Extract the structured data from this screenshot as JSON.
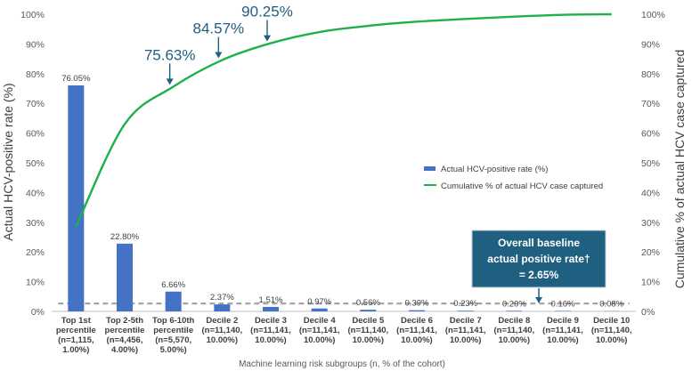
{
  "chart_data": {
    "type": "bar+line",
    "title": "",
    "xlabel": "Machine learning risk subgroups (n, % of the cohort)",
    "ylabel_left": "Actual HCV-positive rate (%)",
    "ylabel_right": "Cumulative % of actual HCV case captured",
    "ylim": [
      0,
      100
    ],
    "yticks": [
      "0%",
      "10%",
      "20%",
      "30%",
      "40%",
      "50%",
      "60%",
      "70%",
      "80%",
      "90%",
      "100%"
    ],
    "categories": [
      {
        "line1": "Top 1st",
        "line2": "percentile",
        "line3": "(n=1,115,",
        "line4": "1.00%)"
      },
      {
        "line1": "Top 2-5th",
        "line2": "percentile",
        "line3": "(n=4,456,",
        "line4": "4.00%)"
      },
      {
        "line1": "Top 6-10th",
        "line2": "percentile",
        "line3": "(n=5,570,",
        "line4": "5.00%)"
      },
      {
        "line1": "Decile 2",
        "line2": "(n=11,140,",
        "line3": "10.00%)",
        "line4": ""
      },
      {
        "line1": "Decile 3",
        "line2": "(n=11,141,",
        "line3": "10.00%)",
        "line4": ""
      },
      {
        "line1": "Decile 4",
        "line2": "(n=11,141,",
        "line3": "10.00%)",
        "line4": ""
      },
      {
        "line1": "Decile 5",
        "line2": "(n=11,140,",
        "line3": "10.00%)",
        "line4": ""
      },
      {
        "line1": "Decile 6",
        "line2": "(n=11,141,",
        "line3": "10.00%)",
        "line4": ""
      },
      {
        "line1": "Decile 7",
        "line2": "(n=11,141,",
        "line3": "10.00%)",
        "line4": ""
      },
      {
        "line1": "Decile 8",
        "line2": "(n=11,140,",
        "line3": "10.00%)",
        "line4": ""
      },
      {
        "line1": "Decile 9",
        "line2": "(n=11,141,",
        "line3": "10.00%)",
        "line4": ""
      },
      {
        "line1": "Decile 10",
        "line2": "(n=11,140,",
        "line3": "10.00%)",
        "line4": ""
      }
    ],
    "series": [
      {
        "name": "Actual HCV-positive rate (%)",
        "type": "bar",
        "color": "#4472c4",
        "values": [
          76.05,
          22.8,
          6.66,
          2.37,
          1.51,
          0.97,
          0.56,
          0.39,
          0.23,
          0.2,
          0.16,
          0.08
        ],
        "labels": [
          "76.05%",
          "22.80%",
          "6.66%",
          "2.37%",
          "1.51%",
          "0.97%",
          "0.56%",
          "0.39%",
          "0.23%",
          "0.20%",
          "0.16%",
          "0.08%"
        ]
      },
      {
        "name": "Cumulative % of actual HCV case captured",
        "type": "line",
        "color": "#1fb04a",
        "values": [
          28.5,
          63.0,
          75.63,
          84.57,
          90.25,
          94.0,
          96.1,
          97.5,
          98.4,
          99.2,
          99.8,
          100.0
        ]
      }
    ],
    "callouts": [
      {
        "index": 2,
        "value": 75.63,
        "text": "75.63%"
      },
      {
        "index": 3,
        "value": 84.57,
        "text": "84.57%"
      },
      {
        "index": 4,
        "value": 90.25,
        "text": "90.25%"
      }
    ],
    "baseline": {
      "value": 2.65,
      "color": "#a6a6a6",
      "box_line1": "Overall baseline",
      "box_line2": "actual positive rate†",
      "box_line3": "= 2.65%",
      "box_color": "#1f5f80"
    },
    "legend_position": "center-right"
  }
}
